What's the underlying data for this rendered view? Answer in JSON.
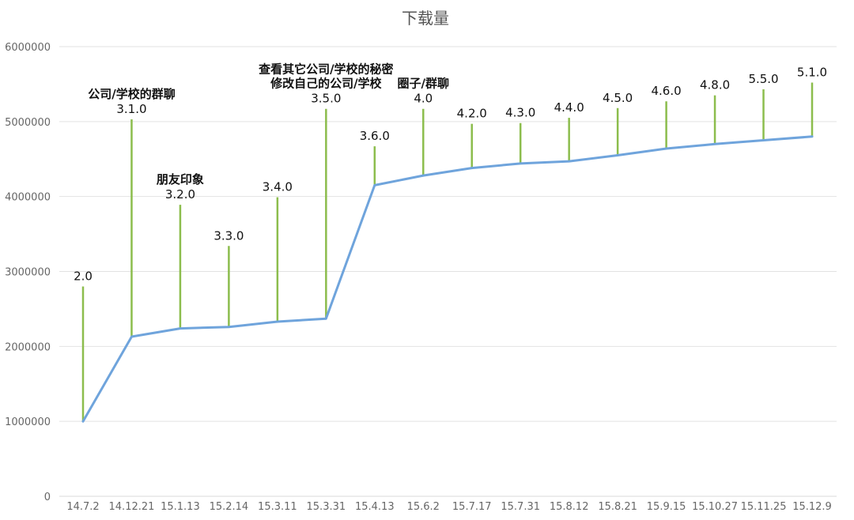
{
  "chart_data": {
    "type": "line",
    "title": "下载量",
    "xlabel": "",
    "ylabel": "",
    "ylim": [
      0,
      6000000
    ],
    "y_ticks": [
      "0",
      "1000000",
      "2000000",
      "3000000",
      "4000000",
      "5000000",
      "6000000"
    ],
    "grid": true,
    "categories": [
      "14.7.2",
      "14.12.21",
      "15.1.13",
      "15.2.14",
      "15.3.11",
      "15.3.31",
      "15.4.13",
      "15.6.2",
      "15.7.17",
      "15.7.31",
      "15.8.12",
      "15.8.21",
      "15.9.15",
      "15.10.27",
      "15.11.25",
      "15.12.9"
    ],
    "series": [
      {
        "name": "",
        "values": [
          1000000,
          2130000,
          2240000,
          2260000,
          2330000,
          2370000,
          4150000,
          4280000,
          4380000,
          4440000,
          4470000,
          4550000,
          4640000,
          4700000,
          4750000,
          4800000
        ]
      }
    ],
    "version_labels": [
      {
        "x": "14.7.2",
        "version": "2.0",
        "stem_top": 2800000,
        "note": []
      },
      {
        "x": "14.12.21",
        "version": "3.1.0",
        "stem_top": 5030000,
        "note": [
          "公司/学校的群聊"
        ]
      },
      {
        "x": "15.1.13",
        "version": "3.2.0",
        "stem_top": 3890000,
        "note": [
          "朋友印象"
        ]
      },
      {
        "x": "15.2.14",
        "version": "3.3.0",
        "stem_top": 3340000,
        "note": []
      },
      {
        "x": "15.3.11",
        "version": "3.4.0",
        "stem_top": 3990000,
        "note": []
      },
      {
        "x": "15.3.31",
        "version": "3.5.0",
        "stem_top": 5170000,
        "note": [
          "查看其它公司/学校的秘密",
          "修改自己的公司/学校"
        ]
      },
      {
        "x": "15.4.13",
        "version": "3.6.0",
        "stem_top": 4670000,
        "note": []
      },
      {
        "x": "15.6.2",
        "version": "4.0",
        "stem_top": 5170000,
        "note": [
          "圈子/群聊"
        ]
      },
      {
        "x": "15.7.17",
        "version": "4.2.0",
        "stem_top": 4970000,
        "note": []
      },
      {
        "x": "15.7.31",
        "version": "4.3.0",
        "stem_top": 4980000,
        "note": []
      },
      {
        "x": "15.8.12",
        "version": "4.4.0",
        "stem_top": 5050000,
        "note": []
      },
      {
        "x": "15.8.21",
        "version": "4.5.0",
        "stem_top": 5180000,
        "note": []
      },
      {
        "x": "15.9.15",
        "version": "4.6.0",
        "stem_top": 5270000,
        "note": []
      },
      {
        "x": "15.10.27",
        "version": "4.8.0",
        "stem_top": 5350000,
        "note": []
      },
      {
        "x": "15.11.25",
        "version": "5.5.0",
        "stem_top": 5430000,
        "note": []
      },
      {
        "x": "15.12.9",
        "version": "5.1.0",
        "stem_top": 5520000,
        "note": []
      }
    ],
    "colors": {
      "line": "#6fa4dc",
      "stem": "#8cbd4d",
      "grid": "#e2e2e2"
    }
  }
}
